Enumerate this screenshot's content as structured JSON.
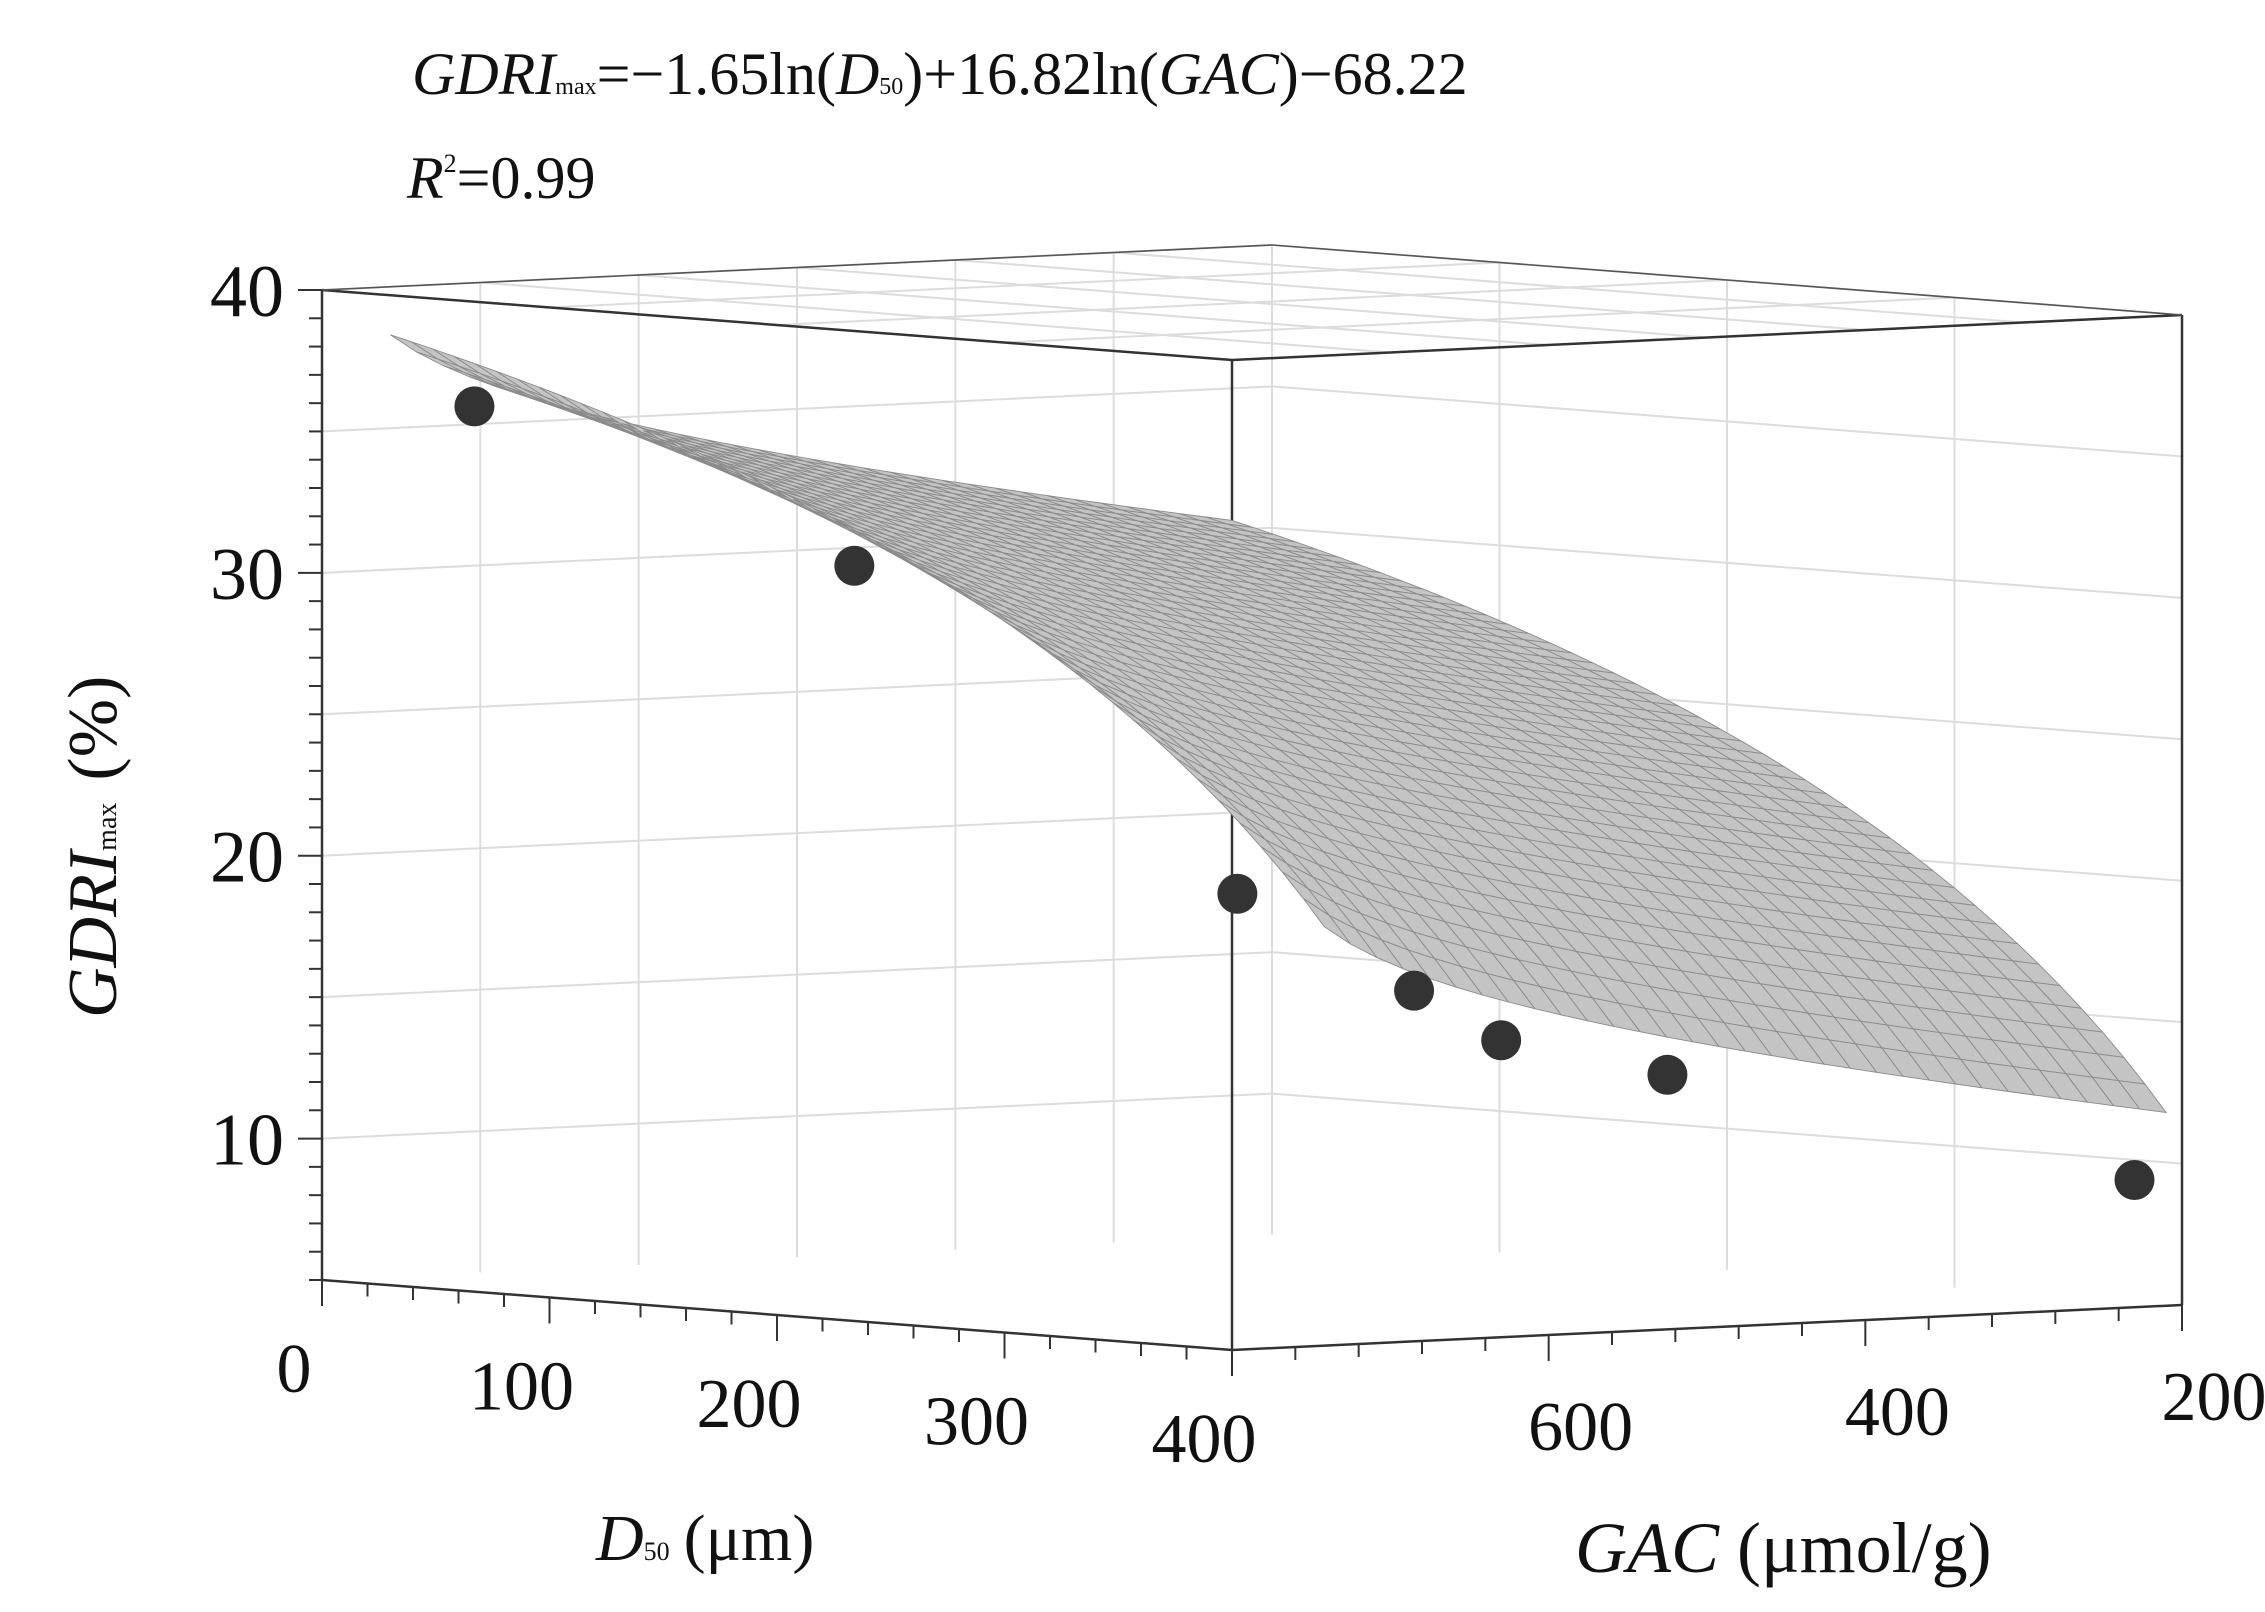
{
  "chart_data": {
    "type": "surface3d",
    "title": {
      "eq_lhs": "GDRI",
      "eq_lhs_sub": "max",
      "eq_mid1": "=−1.65ln(",
      "eq_d": "D",
      "eq_d_sub": "50",
      "eq_mid2": ")+16.82ln(",
      "eq_gac": "GAC",
      "eq_tail": ")−68.22",
      "r_label": "R",
      "r_sup": "2",
      "r_value": "=0.99"
    },
    "equation": {
      "a": -1.65,
      "b": 16.82,
      "c": -68.22
    },
    "x_axis": {
      "name": "D",
      "name_sub": "50",
      "unit": "(μm)",
      "range": [
        0,
        400
      ],
      "ticks": [
        "0",
        "100",
        "200",
        "300",
        "400"
      ]
    },
    "y_axis": {
      "name": "GAC",
      "unit": "(μmol/g)",
      "range": [
        200,
        800
      ],
      "ticks": [
        "600",
        "400",
        "200"
      ]
    },
    "z_axis": {
      "name": "GDRI",
      "name_sub": "max",
      "unit": "(%)",
      "range": [
        5,
        40
      ],
      "ticks": [
        "10",
        "20",
        "30",
        "40"
      ]
    },
    "surface": {
      "d50_range": [
        30,
        400
      ],
      "gac_range": [
        210,
        800
      ],
      "fill": "#c4c4c4",
      "mesh": "#8a8a8a"
    },
    "points": [
      {
        "d50": 67,
        "gac": 800,
        "gdri": 36.3
      },
      {
        "d50": 234,
        "gac": 800,
        "gdri": 31.7
      },
      {
        "d50": 378,
        "gac": 765,
        "gdri": 20.9
      },
      {
        "d50": 400,
        "gac": 685,
        "gdri": 17.4
      },
      {
        "d50": 400,
        "gac": 630,
        "gdri": 15.5
      },
      {
        "d50": 400,
        "gac": 525,
        "gdri": 14.0
      },
      {
        "d50": 400,
        "gac": 230,
        "gdri": 9.5
      }
    ],
    "point_color": "#333333"
  }
}
